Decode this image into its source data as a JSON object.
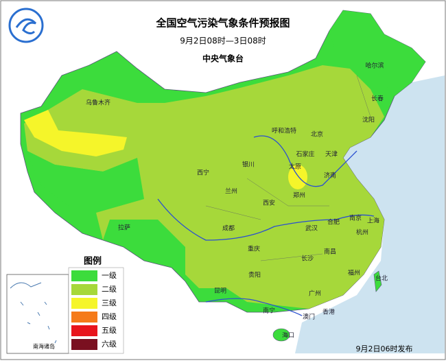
{
  "header": {
    "title": "全国空气污染气象条件预报图",
    "period": "9月2日08时—3日08时",
    "issuer": "中央气象台"
  },
  "legend": {
    "title": "图例",
    "items": [
      {
        "label": "一级",
        "color": "#3cdc3c"
      },
      {
        "label": "二级",
        "color": "#a6d83a"
      },
      {
        "label": "三级",
        "color": "#f5f52a"
      },
      {
        "label": "四级",
        "color": "#f57a1a"
      },
      {
        "label": "五级",
        "color": "#e8141c"
      },
      {
        "label": "六级",
        "color": "#7a1020"
      }
    ]
  },
  "cities": [
    "乌鲁木齐",
    "哈尔滨",
    "长春",
    "沈阳",
    "呼和浩特",
    "北京",
    "天津",
    "石家庄",
    "太原",
    "济南",
    "银川",
    "西宁",
    "兰州",
    "郑州",
    "西安",
    "拉萨",
    "成都",
    "合肥",
    "南京",
    "上海",
    "武汉",
    "杭州",
    "重庆",
    "南昌",
    "长沙",
    "贵阳",
    "福州",
    "台北",
    "昆明",
    "广州",
    "南宁",
    "澳门",
    "香港",
    "海口"
  ],
  "inset": {
    "label": "南海诸岛"
  },
  "footer": "9月2日06时发布"
}
